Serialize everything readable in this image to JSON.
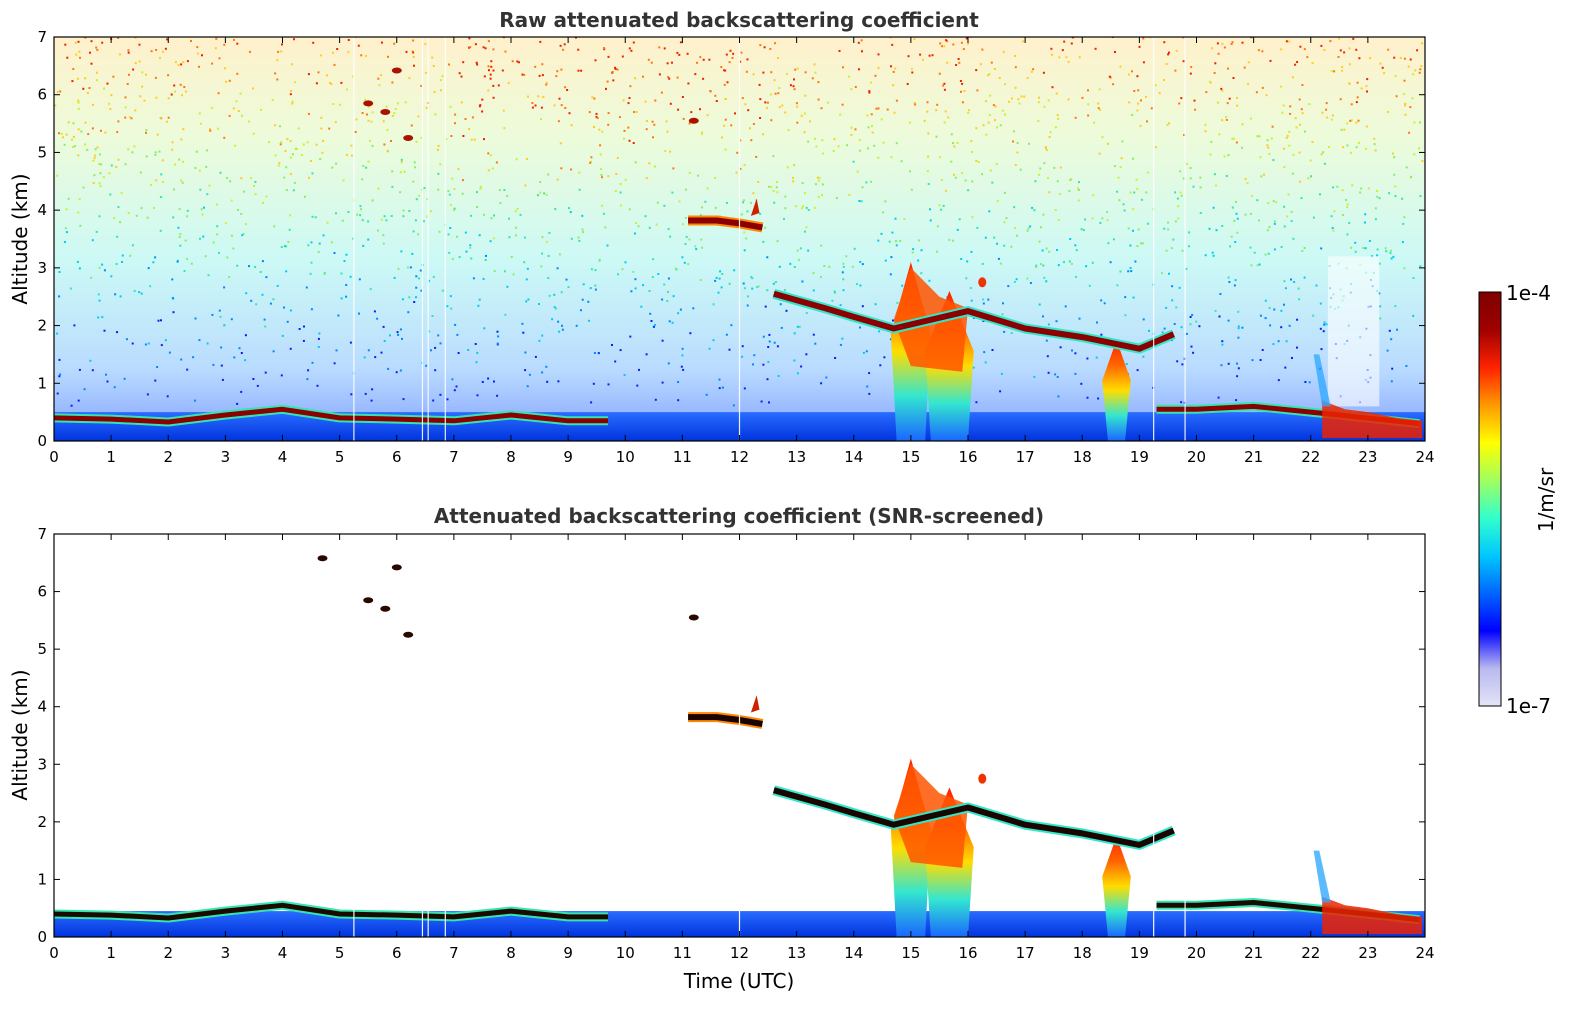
{
  "chart_data": [
    {
      "type": "heatmap",
      "title": "Raw attenuated backscattering coefficient",
      "xlabel": "",
      "ylabel": "Altitude (km)",
      "xlim": [
        0,
        24
      ],
      "ylim": [
        0,
        7
      ],
      "x_ticks": [
        "0",
        "1",
        "2",
        "3",
        "4",
        "5",
        "6",
        "7",
        "8",
        "9",
        "10",
        "11",
        "12",
        "13",
        "14",
        "15",
        "16",
        "17",
        "18",
        "19",
        "20",
        "21",
        "22",
        "23",
        "24"
      ],
      "y_ticks": [
        "0",
        "1",
        "2",
        "3",
        "4",
        "5",
        "6",
        "7"
      ],
      "features": {
        "boundary_layer": [
          [
            0,
            0.4
          ],
          [
            1,
            0.38
          ],
          [
            2,
            0.33
          ],
          [
            3,
            0.45
          ],
          [
            4,
            0.55
          ],
          [
            5,
            0.4
          ],
          [
            6,
            0.38
          ],
          [
            7,
            0.35
          ],
          [
            8,
            0.45
          ],
          [
            9,
            0.35
          ],
          [
            9.7,
            0.35
          ]
        ],
        "boundary_layer_late": [
          [
            19.3,
            0.55
          ],
          [
            20,
            0.55
          ],
          [
            21,
            0.6
          ],
          [
            22,
            0.5
          ],
          [
            22.5,
            0.45
          ],
          [
            23.9,
            0.3
          ]
        ],
        "cloud_layer_descending": [
          [
            12.6,
            2.55
          ],
          [
            13.5,
            2.3
          ],
          [
            14,
            2.15
          ],
          [
            14.7,
            1.95
          ],
          [
            16,
            2.25
          ],
          [
            17,
            1.95
          ],
          [
            18,
            1.8
          ],
          [
            19,
            1.6
          ],
          [
            19.6,
            1.85
          ]
        ],
        "mid_clouds": [
          [
            11.1,
            3.82
          ],
          [
            11.6,
            3.82
          ],
          [
            12.0,
            3.77
          ],
          [
            12.4,
            3.7
          ]
        ],
        "high_specks": [
          [
            5.5,
            5.85
          ],
          [
            5.8,
            5.7
          ],
          [
            6.0,
            6.42
          ],
          [
            6.2,
            5.25
          ],
          [
            11.2,
            5.55
          ]
        ],
        "convective_columns": [
          [
            15.0,
            3.1
          ],
          [
            15.7,
            2.6
          ],
          [
            18.6,
            1.7
          ]
        ],
        "noise_background": "dense above boundary layer"
      }
    },
    {
      "type": "heatmap",
      "title": "Attenuated backscattering coefficient (SNR-screened)",
      "xlabel": "Time (UTC)",
      "ylabel": "Altitude (km)",
      "xlim": [
        0,
        24
      ],
      "ylim": [
        0,
        7
      ],
      "x_ticks": [
        "0",
        "1",
        "2",
        "3",
        "4",
        "5",
        "6",
        "7",
        "8",
        "9",
        "10",
        "11",
        "12",
        "13",
        "14",
        "15",
        "16",
        "17",
        "18",
        "19",
        "20",
        "21",
        "22",
        "23",
        "24"
      ],
      "y_ticks": [
        "0",
        "1",
        "2",
        "3",
        "4",
        "5",
        "6",
        "7"
      ],
      "features": {
        "boundary_layer": [
          [
            0,
            0.4
          ],
          [
            1,
            0.38
          ],
          [
            2,
            0.33
          ],
          [
            3,
            0.45
          ],
          [
            4,
            0.55
          ],
          [
            5,
            0.4
          ],
          [
            6,
            0.38
          ],
          [
            7,
            0.35
          ],
          [
            8,
            0.45
          ],
          [
            9,
            0.35
          ],
          [
            9.7,
            0.35
          ]
        ],
        "boundary_layer_late": [
          [
            19.3,
            0.55
          ],
          [
            20,
            0.55
          ],
          [
            21,
            0.6
          ],
          [
            22,
            0.5
          ],
          [
            22.5,
            0.45
          ],
          [
            23.9,
            0.3
          ]
        ],
        "cloud_layer_descending": [
          [
            12.6,
            2.55
          ],
          [
            13.5,
            2.3
          ],
          [
            14,
            2.15
          ],
          [
            14.7,
            1.95
          ],
          [
            16,
            2.25
          ],
          [
            17,
            1.95
          ],
          [
            18,
            1.8
          ],
          [
            19,
            1.6
          ],
          [
            19.6,
            1.85
          ]
        ],
        "mid_clouds": [
          [
            11.1,
            3.82
          ],
          [
            11.6,
            3.82
          ],
          [
            12.0,
            3.77
          ],
          [
            12.4,
            3.7
          ]
        ],
        "high_specks": [
          [
            4.7,
            6.58
          ],
          [
            5.5,
            5.85
          ],
          [
            5.8,
            5.7
          ],
          [
            6.0,
            6.42
          ],
          [
            6.2,
            5.25
          ],
          [
            11.2,
            5.55
          ]
        ],
        "convective_columns": [
          [
            15.0,
            3.1
          ],
          [
            15.7,
            2.6
          ],
          [
            18.6,
            1.7
          ]
        ],
        "noise_background": "none"
      }
    }
  ],
  "colorbar": {
    "label": "1/m/sr",
    "max_label": "1e-4",
    "min_label": "1e-7",
    "stops": [
      "#e4e4f7",
      "#b8b8f0",
      "#0000ff",
      "#0066ff",
      "#00c8ff",
      "#33ffcc",
      "#a0ff60",
      "#ffff00",
      "#ff9900",
      "#ff2200",
      "#a00000",
      "#7f0000"
    ]
  },
  "colors": {
    "text": "#333333",
    "frame": "#000000",
    "cloud_dark": "#7f0000",
    "cloud_core": "#ff3300",
    "low_signal": "#0033ff"
  }
}
